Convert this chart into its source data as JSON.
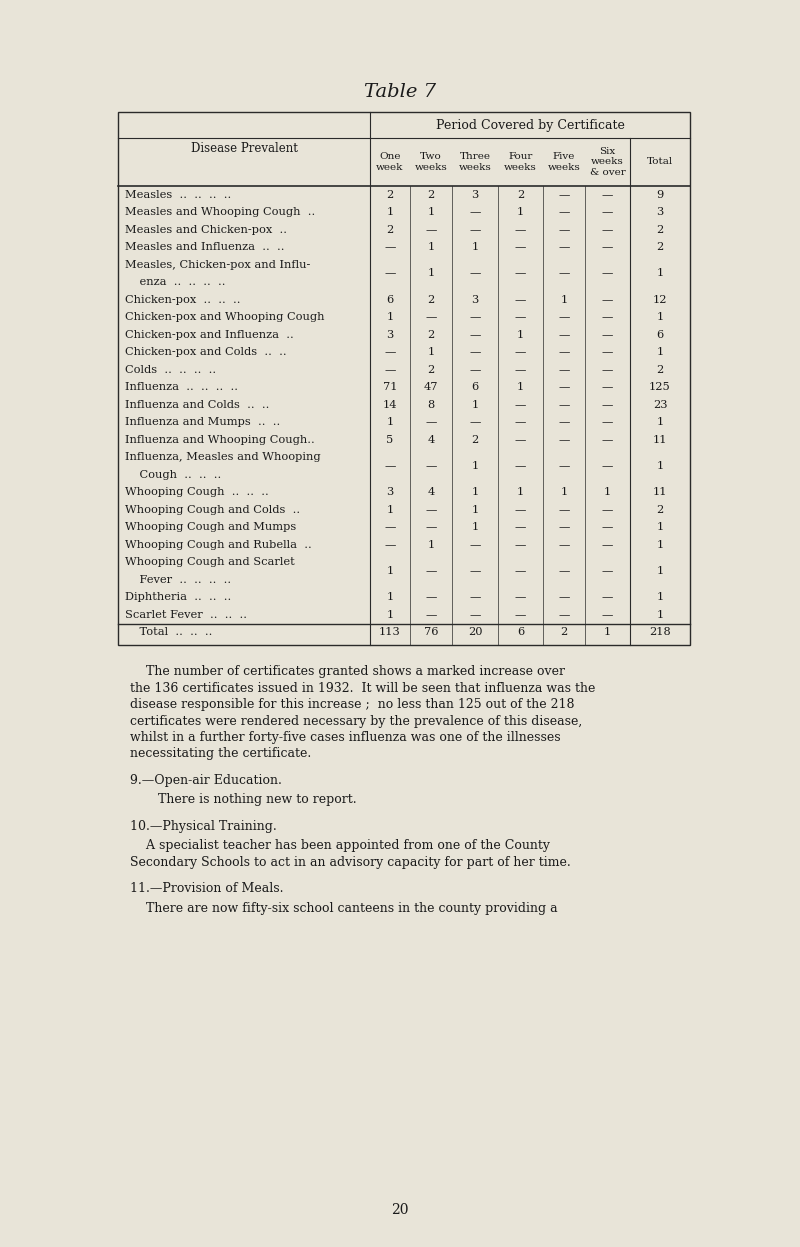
{
  "title": "Table 7",
  "bg_color": "#e8e4d8",
  "table_header_top": "Period Covered by Certificate",
  "col_headers": [
    "One\nweek",
    "Two\nweeks",
    "Three\nweeks",
    "Four\nweeks",
    "Five\nweeks",
    "Six\nweeks\n& over",
    "Total"
  ],
  "row_label_header": "Disease Prevalent",
  "rows": [
    {
      "label": "Measles  ..  ..  ..  ..",
      "values": [
        "2",
        "2",
        "3",
        "2",
        "—",
        "—",
        "9"
      ],
      "double": false
    },
    {
      "label": "Measles and Whooping Cough  ..",
      "values": [
        "1",
        "1",
        "—",
        "1",
        "—",
        "—",
        "3"
      ],
      "double": false
    },
    {
      "label": "Measles and Chicken-pox  ..",
      "values": [
        "2",
        "—",
        "—",
        "—",
        "—",
        "—",
        "2"
      ],
      "double": false
    },
    {
      "label": "Measles and Influenza  ..  ..",
      "values": [
        "—",
        "1",
        "1",
        "—",
        "—",
        "—",
        "2"
      ],
      "double": false
    },
    {
      "label": "Measles, Chicken-pox and Influ-",
      "label2": "    enza  ..  ..  ..  ..",
      "values": [
        "—",
        "1",
        "—",
        "—",
        "—",
        "—",
        "1"
      ],
      "double": true
    },
    {
      "label": "Chicken-pox  ..  ..  ..",
      "values": [
        "6",
        "2",
        "3",
        "—",
        "1",
        "—",
        "12"
      ],
      "double": false
    },
    {
      "label": "Chicken-pox and Whooping Cough",
      "values": [
        "1",
        "—",
        "—",
        "—",
        "—",
        "—",
        "1"
      ],
      "double": false
    },
    {
      "label": "Chicken-pox and Influenza  ..",
      "values": [
        "3",
        "2",
        "—",
        "1",
        "—",
        "—",
        "6"
      ],
      "double": false
    },
    {
      "label": "Chicken-pox and Colds  ..  ..",
      "values": [
        "—",
        "1",
        "—",
        "—",
        "—",
        "—",
        "1"
      ],
      "double": false
    },
    {
      "label": "Colds  ..  ..  ..  ..",
      "values": [
        "—",
        "2",
        "—",
        "—",
        "—",
        "—",
        "2"
      ],
      "double": false
    },
    {
      "label": "Influenza  ..  ..  ..  ..",
      "values": [
        "71",
        "47",
        "6",
        "1",
        "—",
        "—",
        "125"
      ],
      "double": false
    },
    {
      "label": "Influenza and Colds  ..  ..",
      "values": [
        "14",
        "8",
        "1",
        "—",
        "—",
        "—",
        "23"
      ],
      "double": false
    },
    {
      "label": "Influenza and Mumps  ..  ..",
      "values": [
        "1",
        "—",
        "—",
        "—",
        "—",
        "—",
        "1"
      ],
      "double": false
    },
    {
      "label": "Influenza and Whooping Cough..",
      "values": [
        "5",
        "4",
        "2",
        "—",
        "—",
        "—",
        "11"
      ],
      "double": false
    },
    {
      "label": "Influenza, Measles and Whooping",
      "label2": "    Cough  ..  ..  ..",
      "values": [
        "—",
        "—",
        "1",
        "—",
        "—",
        "—",
        "1"
      ],
      "double": true
    },
    {
      "label": "Whooping Cough  ..  ..  ..",
      "values": [
        "3",
        "4",
        "1",
        "1",
        "1",
        "1",
        "11"
      ],
      "double": false
    },
    {
      "label": "Whooping Cough and Colds  ..",
      "values": [
        "1",
        "—",
        "1",
        "—",
        "—",
        "—",
        "2"
      ],
      "double": false
    },
    {
      "label": "Whooping Cough and Mumps",
      "values": [
        "—",
        "—",
        "1",
        "—",
        "—",
        "—",
        "1"
      ],
      "double": false
    },
    {
      "label": "Whooping Cough and Rubella  ..",
      "values": [
        "—",
        "1",
        "—",
        "—",
        "—",
        "—",
        "1"
      ],
      "double": false
    },
    {
      "label": "Whooping Cough and Scarlet",
      "label2": "    Fever  ..  ..  ..  ..",
      "values": [
        "1",
        "—",
        "—",
        "—",
        "—",
        "—",
        "1"
      ],
      "double": true
    },
    {
      "label": "Diphtheria  ..  ..  ..",
      "values": [
        "1",
        "—",
        "—",
        "—",
        "—",
        "—",
        "1"
      ],
      "double": false
    },
    {
      "label": "Scarlet Fever  ..  ..  ..",
      "values": [
        "1",
        "—",
        "—",
        "—",
        "—",
        "—",
        "1"
      ],
      "double": false
    },
    {
      "label": "    Total  ..  ..  ..",
      "values": [
        "113",
        "76",
        "20",
        "6",
        "2",
        "1",
        "218"
      ],
      "double": false,
      "is_total": true
    }
  ],
  "para0": "    The number of certificates granted shows a marked increase over the 136 certificates issued in 1932.  It will be seen that influenza was the disease responsible for this increase ;  no less than 125 out of the 218 certificates were rendered necessary by the prevalence of this disease, whilst in a further forty-five cases influenza was one of the illnesses necessitating the certificate.",
  "sec9_head": "9.—Open-air Education.",
  "sec9_body": "    There is nothing new to report.",
  "sec10_head": "10.—Physical Training.",
  "sec10_body": "    A specialist teacher has been appointed from one of the County Secondary Schools to act in an advisory capacity for part of her time.",
  "sec11_head": "11.—Provision of Meals.",
  "sec11_body": "    There are now fifty-six school canteens in the county providing a",
  "page_number": "20"
}
